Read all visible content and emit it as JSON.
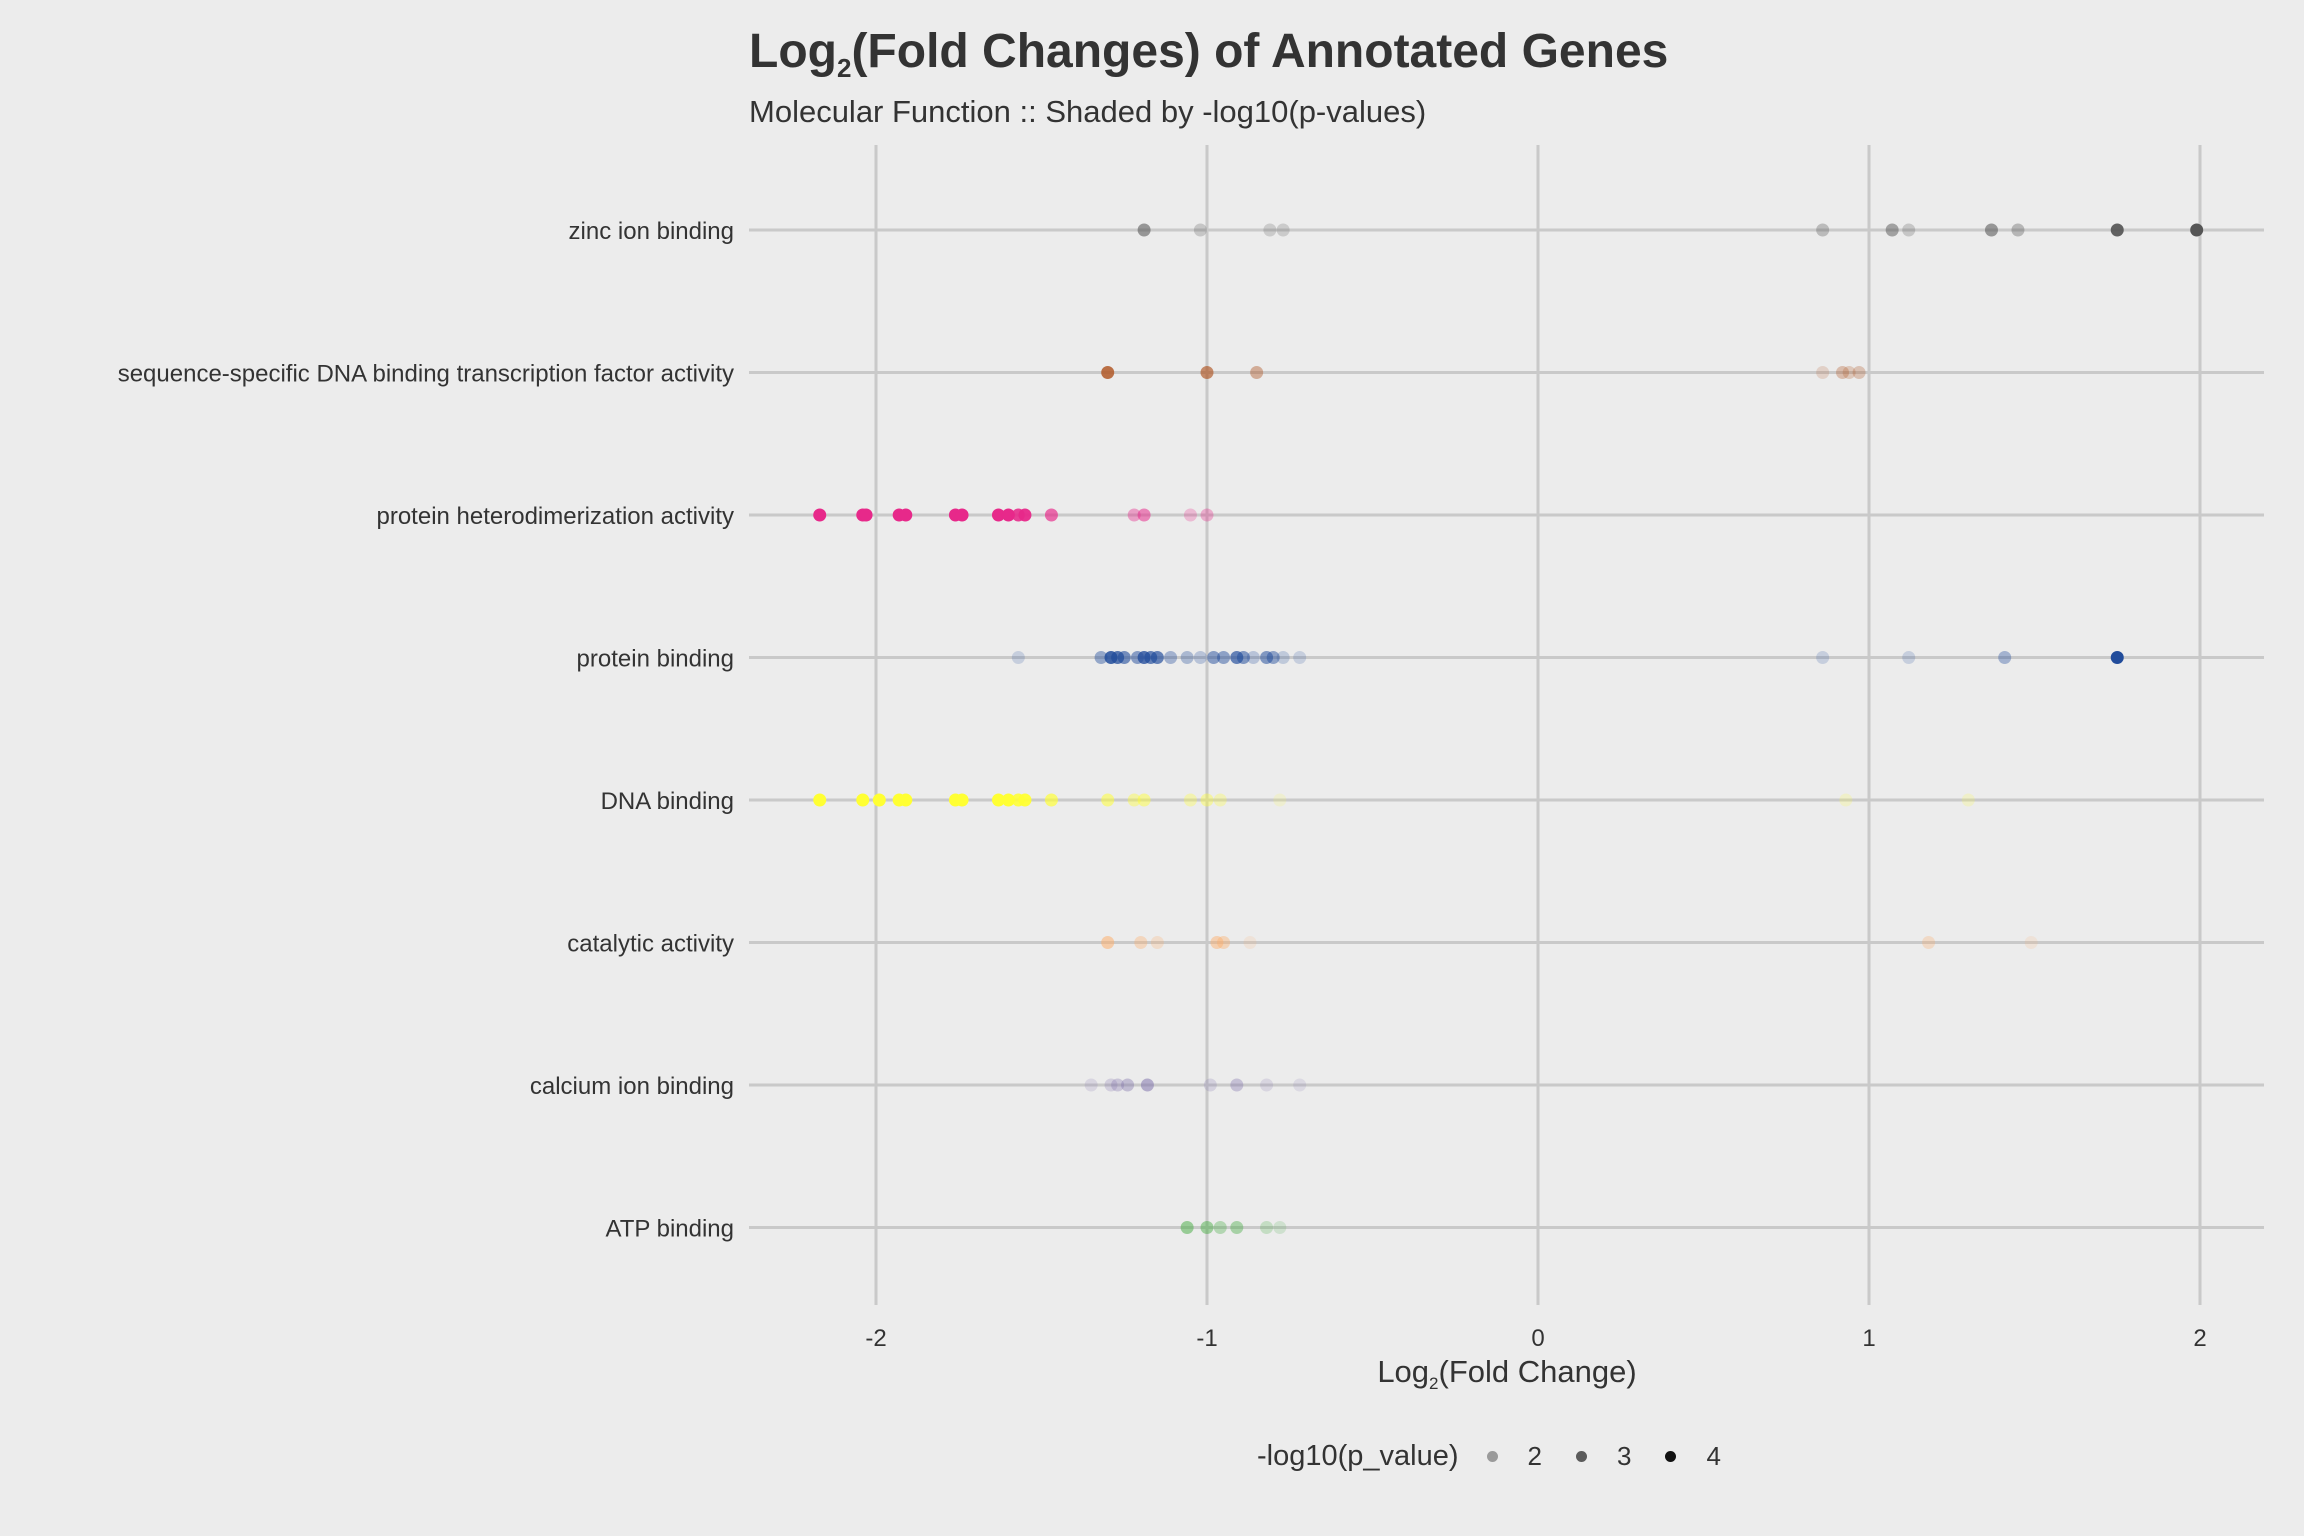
{
  "title": {
    "prefix": "Log",
    "sub": "2",
    "suffix": "(Fold Changes) of Annotated Genes"
  },
  "subtitle": "Molecular Function :: Shaded by -log10(p-values)",
  "legend": {
    "title": "-log10(p_value)",
    "items": [
      {
        "label": "2",
        "color": "#9a9a9a"
      },
      {
        "label": "3",
        "color": "#5b5b5b"
      },
      {
        "label": "4",
        "color": "#111111"
      }
    ]
  },
  "chart_data": {
    "type": "scatter",
    "title": "Log2(Fold Changes) of Annotated Genes",
    "subtitle": "Molecular Function :: Shaded by -log10(p-values)",
    "xlabel": "Log2(Fold Change)",
    "ylabel": "",
    "xlim": [
      -2.38,
      2.2
    ],
    "xticks": [
      "-2",
      "-1",
      "0",
      "1",
      "2"
    ],
    "grid": true,
    "legend_position": "bottom",
    "legend_title": "-log10(p_value)",
    "categories": [
      "zinc ion binding",
      "sequence-specific DNA binding transcription factor activity",
      "protein heterodimerization activity",
      "protein binding",
      "DNA binding",
      "catalytic activity",
      "calcium ion binding",
      "ATP binding"
    ],
    "series": [
      {
        "name": "zinc ion binding",
        "color": "#555555",
        "points": [
          {
            "x": -1.19,
            "p": 2.7
          },
          {
            "x": -1.02,
            "p": 1.8
          },
          {
            "x": -0.81,
            "p": 1.7
          },
          {
            "x": -0.77,
            "p": 1.7
          },
          {
            "x": 0.86,
            "p": 2.0
          },
          {
            "x": 1.07,
            "p": 2.5
          },
          {
            "x": 1.12,
            "p": 1.8
          },
          {
            "x": 1.37,
            "p": 2.7
          },
          {
            "x": 1.45,
            "p": 2.1
          },
          {
            "x": 1.75,
            "p": 3.7
          },
          {
            "x": 1.99,
            "p": 4.0
          }
        ]
      },
      {
        "name": "sequence-specific DNA binding transcription factor activity",
        "color": "#b15928",
        "points": [
          {
            "x": -1.3,
            "p": 3.5
          },
          {
            "x": -1.0,
            "p": 3.0
          },
          {
            "x": -0.85,
            "p": 2.3
          },
          {
            "x": 0.86,
            "p": 1.6
          },
          {
            "x": 0.92,
            "p": 2.0
          },
          {
            "x": 0.94,
            "p": 1.8
          },
          {
            "x": 0.97,
            "p": 1.9
          }
        ]
      },
      {
        "name": "protein heterodimerization activity",
        "color": "#e7298a",
        "points": [
          {
            "x": -2.17,
            "p": 4.0
          },
          {
            "x": -2.04,
            "p": 4.0
          },
          {
            "x": -2.03,
            "p": 4.0
          },
          {
            "x": -1.93,
            "p": 4.0
          },
          {
            "x": -1.91,
            "p": 4.0
          },
          {
            "x": -1.76,
            "p": 4.0
          },
          {
            "x": -1.74,
            "p": 4.0
          },
          {
            "x": -1.63,
            "p": 4.0
          },
          {
            "x": -1.6,
            "p": 4.0
          },
          {
            "x": -1.57,
            "p": 3.6
          },
          {
            "x": -1.55,
            "p": 3.8
          },
          {
            "x": -1.47,
            "p": 3.0
          },
          {
            "x": -1.22,
            "p": 2.2
          },
          {
            "x": -1.19,
            "p": 2.6
          },
          {
            "x": -1.05,
            "p": 1.8
          },
          {
            "x": -1.0,
            "p": 2.0
          }
        ]
      },
      {
        "name": "protein binding",
        "color": "#214c9b",
        "points": [
          {
            "x": -1.57,
            "p": 1.6
          },
          {
            "x": -1.32,
            "p": 2.3
          },
          {
            "x": -1.29,
            "p": 3.5
          },
          {
            "x": -1.27,
            "p": 3.2
          },
          {
            "x": -1.25,
            "p": 2.8
          },
          {
            "x": -1.21,
            "p": 2.5
          },
          {
            "x": -1.19,
            "p": 3.3
          },
          {
            "x": -1.17,
            "p": 3.0
          },
          {
            "x": -1.15,
            "p": 3.0
          },
          {
            "x": -1.11,
            "p": 2.1
          },
          {
            "x": -1.06,
            "p": 2.0
          },
          {
            "x": -1.02,
            "p": 1.8
          },
          {
            "x": -0.98,
            "p": 2.5
          },
          {
            "x": -0.95,
            "p": 2.4
          },
          {
            "x": -0.91,
            "p": 3.0
          },
          {
            "x": -0.89,
            "p": 2.6
          },
          {
            "x": -0.86,
            "p": 1.8
          },
          {
            "x": -0.82,
            "p": 2.6
          },
          {
            "x": -0.8,
            "p": 2.4
          },
          {
            "x": -0.77,
            "p": 1.7
          },
          {
            "x": -0.72,
            "p": 1.6
          },
          {
            "x": 0.86,
            "p": 1.6
          },
          {
            "x": 1.12,
            "p": 1.6
          },
          {
            "x": 1.41,
            "p": 2.1
          },
          {
            "x": 1.75,
            "p": 4.0
          }
        ]
      },
      {
        "name": "DNA binding",
        "color": "#ffff33",
        "points": [
          {
            "x": -2.17,
            "p": 4.0
          },
          {
            "x": -2.04,
            "p": 4.0
          },
          {
            "x": -1.99,
            "p": 4.0
          },
          {
            "x": -1.93,
            "p": 4.0
          },
          {
            "x": -1.91,
            "p": 4.0
          },
          {
            "x": -1.76,
            "p": 4.0
          },
          {
            "x": -1.74,
            "p": 4.0
          },
          {
            "x": -1.63,
            "p": 4.0
          },
          {
            "x": -1.6,
            "p": 4.0
          },
          {
            "x": -1.57,
            "p": 3.6
          },
          {
            "x": -1.55,
            "p": 3.8
          },
          {
            "x": -1.47,
            "p": 3.0
          },
          {
            "x": -1.3,
            "p": 2.6
          },
          {
            "x": -1.22,
            "p": 2.2
          },
          {
            "x": -1.19,
            "p": 2.4
          },
          {
            "x": -1.05,
            "p": 2.0
          },
          {
            "x": -1.0,
            "p": 2.2
          },
          {
            "x": -0.96,
            "p": 1.9
          },
          {
            "x": -0.78,
            "p": 1.5
          },
          {
            "x": 0.93,
            "p": 1.6
          },
          {
            "x": 1.3,
            "p": 1.6
          }
        ]
      },
      {
        "name": "catalytic activity",
        "color": "#fdae6b",
        "points": [
          {
            "x": -1.3,
            "p": 2.6
          },
          {
            "x": -1.2,
            "p": 2.1
          },
          {
            "x": -1.15,
            "p": 1.8
          },
          {
            "x": -0.97,
            "p": 2.4
          },
          {
            "x": -0.95,
            "p": 2.2
          },
          {
            "x": -0.87,
            "p": 1.5
          },
          {
            "x": 1.18,
            "p": 1.9
          },
          {
            "x": 1.49,
            "p": 1.5
          }
        ]
      },
      {
        "name": "calcium ion binding",
        "color": "#8073ac",
        "points": [
          {
            "x": -1.35,
            "p": 1.6
          },
          {
            "x": -1.29,
            "p": 1.8
          },
          {
            "x": -1.27,
            "p": 2.0
          },
          {
            "x": -1.24,
            "p": 2.2
          },
          {
            "x": -1.18,
            "p": 2.6
          },
          {
            "x": -0.99,
            "p": 1.7
          },
          {
            "x": -0.91,
            "p": 2.1
          },
          {
            "x": -0.82,
            "p": 1.6
          },
          {
            "x": -0.72,
            "p": 1.5
          }
        ]
      },
      {
        "name": "ATP binding",
        "color": "#4daf4a",
        "points": [
          {
            "x": -1.06,
            "p": 2.6
          },
          {
            "x": -1.0,
            "p": 2.5
          },
          {
            "x": -0.96,
            "p": 2.1
          },
          {
            "x": -0.91,
            "p": 2.3
          },
          {
            "x": -0.82,
            "p": 1.8
          },
          {
            "x": -0.78,
            "p": 1.6
          }
        ]
      }
    ]
  }
}
